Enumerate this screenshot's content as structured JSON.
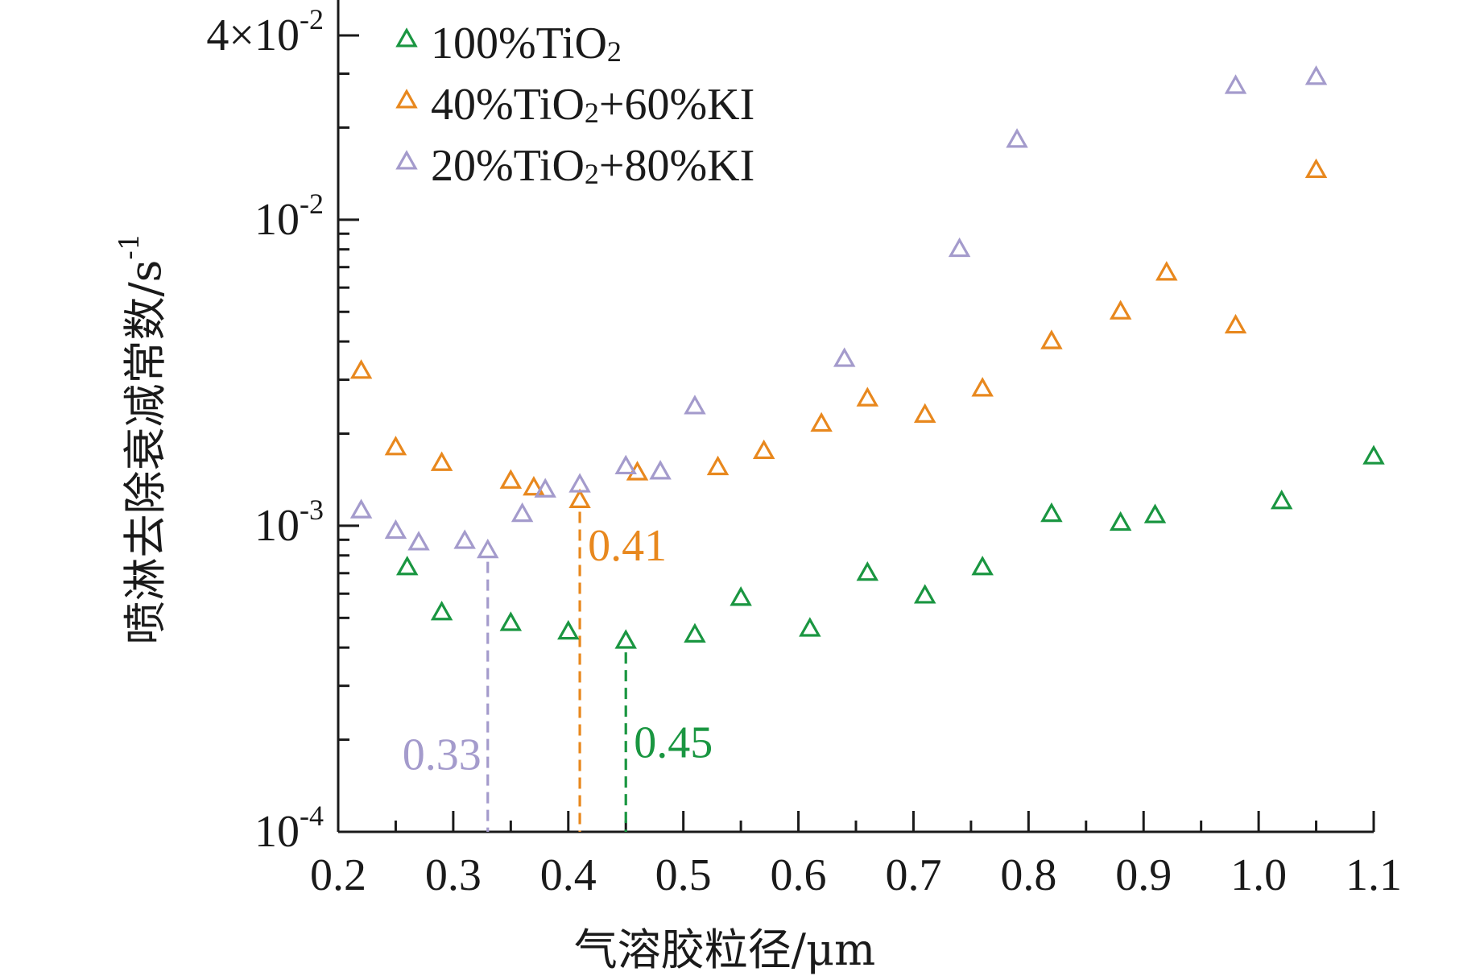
{
  "chart_data": {
    "type": "scatter",
    "xlabel": "气溶胶粒径/μm",
    "ylabel": "喷淋去除衰减常数/s",
    "ylabel_sup": "-1",
    "xlim": [
      0.2,
      1.1
    ],
    "ylim": [
      0.0001,
      0.04
    ],
    "yscale": "log",
    "x_ticks": [
      "0.2",
      "0.3",
      "0.4",
      "0.5",
      "0.6",
      "0.7",
      "0.8",
      "0.9",
      "1.0",
      "1.1"
    ],
    "y_ticks": [
      {
        "value": 0.0001,
        "base": "10",
        "exp": "-4"
      },
      {
        "value": 0.001,
        "base": "10",
        "exp": "-3"
      },
      {
        "value": 0.01,
        "base": "10",
        "exp": "-2"
      },
      {
        "value": 0.04,
        "base": "4×10",
        "exp": "-2"
      }
    ],
    "grid": false,
    "legend_position": "top-left",
    "marker": "open-triangle",
    "series": [
      {
        "name": "100%TiO2",
        "label_main": "100%TiO",
        "label_sub": "2",
        "label_rest": "",
        "color": "#1a9641",
        "points": [
          [
            0.26,
            0.00073
          ],
          [
            0.29,
            0.00052
          ],
          [
            0.35,
            0.00048
          ],
          [
            0.4,
            0.00045
          ],
          [
            0.45,
            0.00042
          ],
          [
            0.51,
            0.00044
          ],
          [
            0.55,
            0.00058
          ],
          [
            0.61,
            0.00046
          ],
          [
            0.66,
            0.0007
          ],
          [
            0.71,
            0.00059
          ],
          [
            0.76,
            0.00073
          ],
          [
            0.82,
            0.00109
          ],
          [
            0.88,
            0.00102
          ],
          [
            0.91,
            0.00108
          ],
          [
            1.02,
            0.0012
          ],
          [
            1.1,
            0.00168
          ]
        ]
      },
      {
        "name": "40%TiO2+60%KI",
        "label_main": "40%TiO",
        "label_sub": "2",
        "label_rest": "+60%KI",
        "color": "#e8881e",
        "points": [
          [
            0.22,
            0.0032
          ],
          [
            0.25,
            0.0018
          ],
          [
            0.29,
            0.0016
          ],
          [
            0.35,
            0.0014
          ],
          [
            0.37,
            0.00133
          ],
          [
            0.41,
            0.00121
          ],
          [
            0.46,
            0.00149
          ],
          [
            0.53,
            0.00155
          ],
          [
            0.57,
            0.00175
          ],
          [
            0.62,
            0.00215
          ],
          [
            0.66,
            0.0026
          ],
          [
            0.71,
            0.0023
          ],
          [
            0.76,
            0.0028
          ],
          [
            0.82,
            0.004
          ],
          [
            0.88,
            0.005
          ],
          [
            0.92,
            0.0067
          ],
          [
            0.98,
            0.0045
          ],
          [
            1.05,
            0.0145
          ]
        ]
      },
      {
        "name": "20%TiO2+80%KI",
        "label_main": "20%TiO",
        "label_sub": "2",
        "label_rest": "+80%KI",
        "color": "#a49bcc",
        "points": [
          [
            0.22,
            0.00112
          ],
          [
            0.25,
            0.00096
          ],
          [
            0.27,
            0.00088
          ],
          [
            0.31,
            0.00089
          ],
          [
            0.33,
            0.00083
          ],
          [
            0.36,
            0.00109
          ],
          [
            0.38,
            0.00131
          ],
          [
            0.41,
            0.00136
          ],
          [
            0.45,
            0.00156
          ],
          [
            0.48,
            0.0015
          ],
          [
            0.51,
            0.00245
          ],
          [
            0.64,
            0.0035
          ],
          [
            0.74,
            0.008
          ],
          [
            0.79,
            0.0182
          ],
          [
            0.98,
            0.0273
          ],
          [
            1.05,
            0.0292
          ]
        ]
      }
    ],
    "annotations": [
      {
        "x": 0.33,
        "label": "0.33",
        "color": "#a49bcc",
        "series": 2,
        "label_side": "left",
        "label_y": 0.00016
      },
      {
        "x": 0.41,
        "label": "0.41",
        "color": "#e8881e",
        "series": 1,
        "label_side": "right",
        "label_y": 0.00077
      },
      {
        "x": 0.45,
        "label": "0.45",
        "color": "#1a9641",
        "series": 0,
        "label_side": "right",
        "label_y": 0.000175
      }
    ]
  }
}
